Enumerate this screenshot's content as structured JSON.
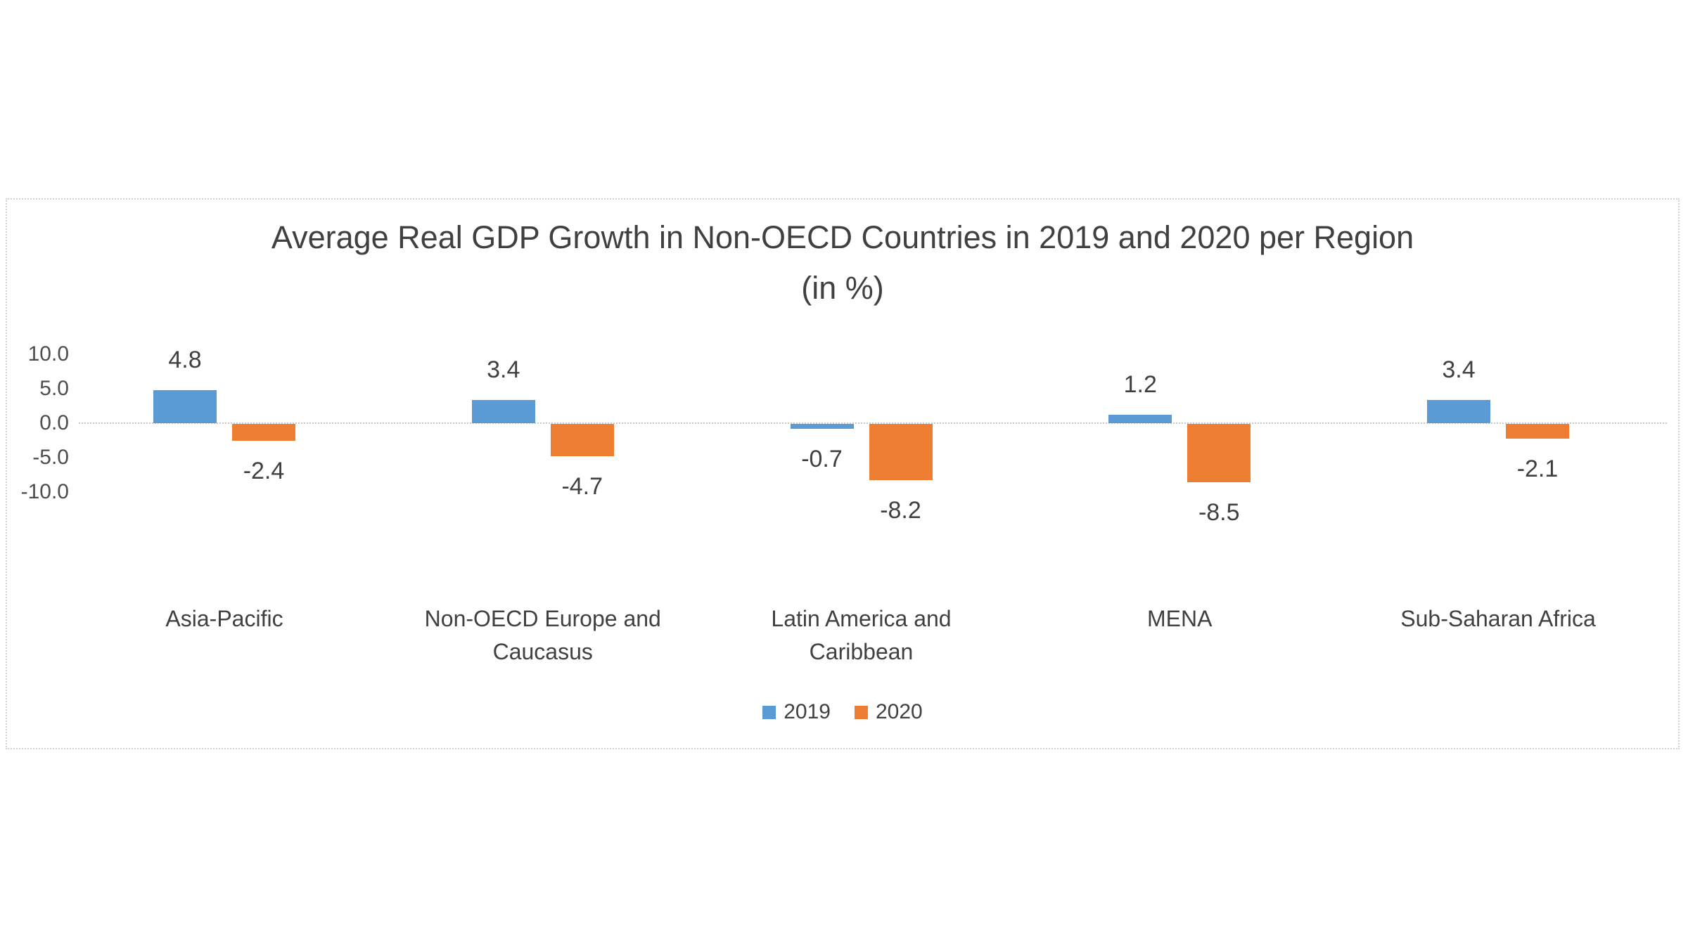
{
  "chart_data": {
    "type": "bar",
    "title": "Average Real GDP Growth in Non-OECD Countries in 2019 and 2020 per Region  (in %)",
    "categories": [
      "Asia-Pacific",
      "Non-OECD Europe and Caucasus",
      "Latin America and Caribbean",
      "MENA",
      "Sub-Saharan Africa"
    ],
    "series": [
      {
        "name": "2019",
        "color": "#5B9BD5",
        "values": [
          4.8,
          3.4,
          -0.7,
          1.2,
          3.4
        ]
      },
      {
        "name": "2020",
        "color": "#ED7D31",
        "values": [
          -2.4,
          -4.7,
          -8.2,
          -8.5,
          -2.1
        ]
      }
    ],
    "y_ticks": [
      "10.0",
      "5.0",
      "0.0",
      "-5.0",
      "-10.0"
    ],
    "ylim": [
      -13,
      12
    ],
    "grid": false,
    "value_labels": true,
    "legend_position": "bottom",
    "axis_line_color": "#c9c9c9",
    "text_color": "#404040"
  }
}
